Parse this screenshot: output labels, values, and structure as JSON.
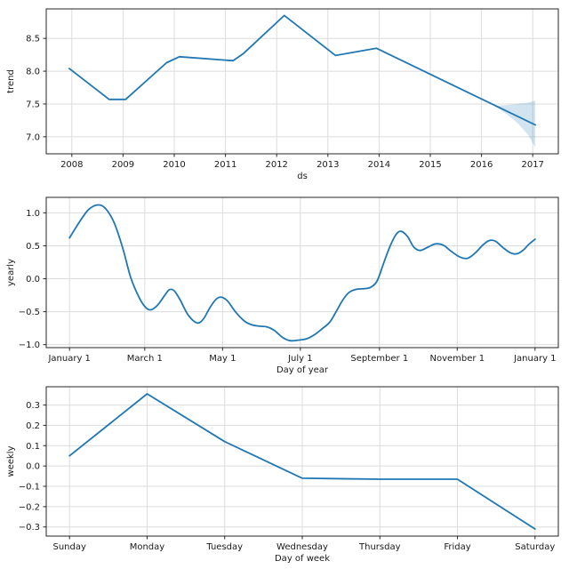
{
  "figure": {
    "background": "#ffffff",
    "line_color": "#1f77b4",
    "band_color": "rgba(31,119,180,0.2)",
    "grid_color": "#dcdcdc",
    "spine_color": "#262626",
    "text_color": "#1a1a1a"
  },
  "chart_data": [
    {
      "name": "trend",
      "type": "line",
      "title": "",
      "xlabel": "ds",
      "ylabel": "trend",
      "grid": true,
      "legend": "none",
      "smooth": false,
      "xlim": [
        2007.5,
        2017.5
      ],
      "ylim": [
        6.74,
        8.95
      ],
      "xticks": {
        "values": [
          2008,
          2009,
          2010,
          2011,
          2012,
          2013,
          2014,
          2015,
          2016,
          2017
        ],
        "labels": [
          "2008",
          "2009",
          "2010",
          "2011",
          "2012",
          "2013",
          "2014",
          "2015",
          "2016",
          "2017"
        ]
      },
      "yticks": {
        "values": [
          7.0,
          7.5,
          8.0,
          8.5
        ],
        "labels": [
          "7.0",
          "7.5",
          "8.0",
          "8.5"
        ]
      },
      "series": [
        {
          "name": "trend",
          "color": "#1f77b4",
          "points": [
            [
              2007.95,
              8.04
            ],
            [
              2008.73,
              7.57
            ],
            [
              2009.05,
              7.57
            ],
            [
              2009.85,
              8.13
            ],
            [
              2010.1,
              8.22
            ],
            [
              2011.15,
              8.16
            ],
            [
              2011.35,
              8.27
            ],
            [
              2012.15,
              8.85
            ],
            [
              2013.15,
              8.24
            ],
            [
              2013.95,
              8.35
            ],
            [
              2017.05,
              7.18
            ]
          ]
        }
      ],
      "uncertainty_band": {
        "x": [
          2016.27,
          2016.5,
          2016.7,
          2016.9,
          2017.05
        ],
        "upper": [
          7.47,
          7.485,
          7.5,
          7.52,
          7.55
        ],
        "lower": [
          7.46,
          7.34,
          7.21,
          7.04,
          6.84
        ]
      }
    },
    {
      "name": "yearly",
      "type": "line",
      "title": "",
      "xlabel": "Day of year",
      "ylabel": "yearly",
      "grid": true,
      "legend": "none",
      "smooth": true,
      "xlim": [
        -18.25,
        383.25
      ],
      "ylim": [
        -1.045,
        1.235
      ],
      "xticks": {
        "values": [
          0,
          59,
          120,
          181,
          243,
          304,
          365
        ],
        "labels": [
          "January 1",
          "March 1",
          "May 1",
          "July 1",
          "September 1",
          "November 1",
          "January 1"
        ]
      },
      "yticks": {
        "values": [
          -1.0,
          -0.5,
          0.0,
          0.5,
          1.0
        ],
        "labels": [
          "−1.0",
          "−0.5",
          "0.0",
          "0.5",
          "1.0"
        ]
      },
      "series": [
        {
          "name": "yearly",
          "color": "#1f77b4",
          "points": [
            [
              0,
              0.62
            ],
            [
              8,
              0.87
            ],
            [
              15,
              1.05
            ],
            [
              22,
              1.12
            ],
            [
              28,
              1.07
            ],
            [
              35,
              0.85
            ],
            [
              42,
              0.45
            ],
            [
              48,
              0.02
            ],
            [
              55,
              -0.3
            ],
            [
              60,
              -0.44
            ],
            [
              64,
              -0.47
            ],
            [
              69,
              -0.4
            ],
            [
              74,
              -0.27
            ],
            [
              78,
              -0.17
            ],
            [
              82,
              -0.18
            ],
            [
              87,
              -0.33
            ],
            [
              93,
              -0.55
            ],
            [
              100,
              -0.67
            ],
            [
              105,
              -0.61
            ],
            [
              110,
              -0.44
            ],
            [
              115,
              -0.31
            ],
            [
              119,
              -0.28
            ],
            [
              124,
              -0.34
            ],
            [
              130,
              -0.5
            ],
            [
              137,
              -0.64
            ],
            [
              143,
              -0.7
            ],
            [
              149,
              -0.72
            ],
            [
              155,
              -0.73
            ],
            [
              161,
              -0.79
            ],
            [
              167,
              -0.89
            ],
            [
              173,
              -0.94
            ],
            [
              180,
              -0.93
            ],
            [
              186,
              -0.91
            ],
            [
              192,
              -0.85
            ],
            [
              198,
              -0.76
            ],
            [
              204,
              -0.66
            ],
            [
              209,
              -0.5
            ],
            [
              214,
              -0.33
            ],
            [
              219,
              -0.21
            ],
            [
              225,
              -0.16
            ],
            [
              231,
              -0.15
            ],
            [
              236,
              -0.13
            ],
            [
              241,
              -0.04
            ],
            [
              246,
              0.22
            ],
            [
              251,
              0.48
            ],
            [
              256,
              0.67
            ],
            [
              260,
              0.72
            ],
            [
              265,
              0.64
            ],
            [
              270,
              0.48
            ],
            [
              275,
              0.43
            ],
            [
              281,
              0.48
            ],
            [
              287,
              0.53
            ],
            [
              293,
              0.51
            ],
            [
              299,
              0.42
            ],
            [
              306,
              0.33
            ],
            [
              312,
              0.31
            ],
            [
              318,
              0.39
            ],
            [
              324,
              0.51
            ],
            [
              329,
              0.58
            ],
            [
              334,
              0.57
            ],
            [
              340,
              0.47
            ],
            [
              346,
              0.39
            ],
            [
              351,
              0.38
            ],
            [
              356,
              0.44
            ],
            [
              360,
              0.52
            ],
            [
              365,
              0.6
            ]
          ]
        }
      ],
      "uncertainty_band": null
    },
    {
      "name": "weekly",
      "type": "line",
      "title": "",
      "xlabel": "Day of week",
      "ylabel": "weekly",
      "grid": true,
      "legend": "none",
      "smooth": false,
      "xlim": [
        -0.3,
        6.3
      ],
      "ylim": [
        -0.345,
        0.39
      ],
      "xticks": {
        "values": [
          0,
          1,
          2,
          3,
          4,
          5,
          6
        ],
        "labels": [
          "Sunday",
          "Monday",
          "Tuesday",
          "Wednesday",
          "Thursday",
          "Friday",
          "Saturday"
        ]
      },
      "yticks": {
        "values": [
          -0.3,
          -0.2,
          -0.1,
          0.0,
          0.1,
          0.2,
          0.3
        ],
        "labels": [
          "−0.3",
          "−0.2",
          "−0.1",
          "0.0",
          "0.1",
          "0.2",
          "0.3"
        ]
      },
      "series": [
        {
          "name": "weekly",
          "color": "#1f77b4",
          "points": [
            [
              0,
              0.05
            ],
            [
              1,
              0.355
            ],
            [
              2,
              0.12
            ],
            [
              3,
              -0.06
            ],
            [
              4,
              -0.065
            ],
            [
              5,
              -0.065
            ],
            [
              6,
              -0.31
            ]
          ]
        }
      ],
      "uncertainty_band": null
    }
  ]
}
